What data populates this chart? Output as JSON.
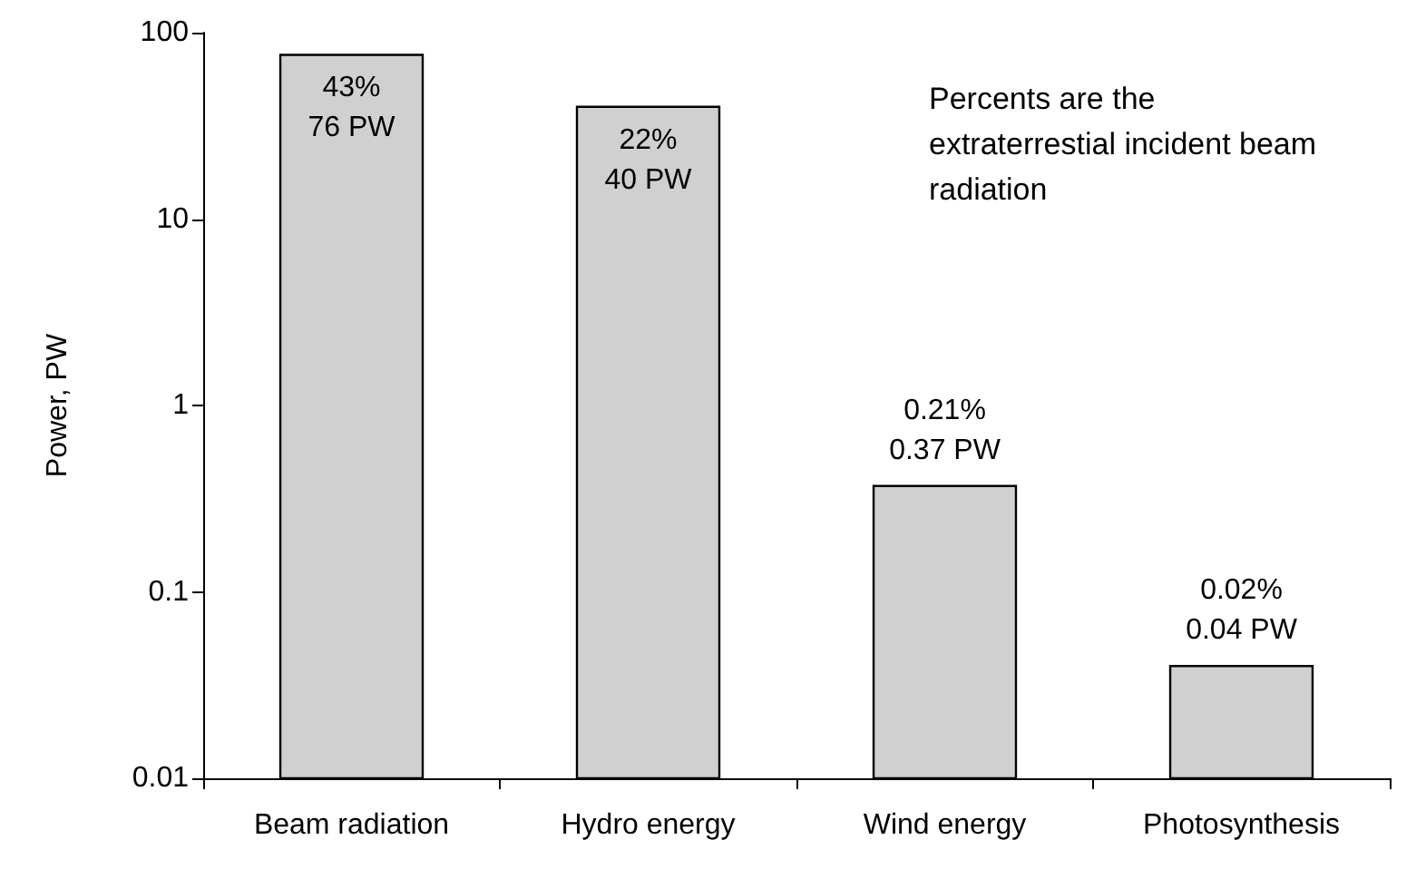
{
  "chart_data": {
    "type": "bar",
    "ylabel": "Power, PW",
    "categories": [
      "Beam radiation",
      "Hydro energy",
      "Wind energy",
      "Photosynthesis"
    ],
    "values": [
      76,
      40,
      0.37,
      0.04
    ],
    "value_labels": [
      "43%\n76 PW",
      "22%\n40 PW",
      "0.21%\n0.37 PW",
      "0.02%\n0.04 PW"
    ],
    "color": "#d0d0d0",
    "log": true,
    "ylim": [
      0.01,
      100
    ],
    "yticks": [
      0.01,
      0.1,
      1,
      10,
      100
    ],
    "grid": false,
    "annotations": [
      "Percents are the extraterrestial incident beam radiation"
    ]
  }
}
